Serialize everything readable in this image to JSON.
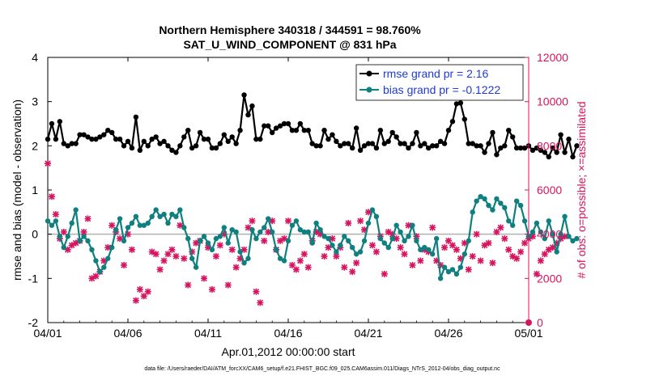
{
  "colors": {
    "rmse": "#000000",
    "bias": "#0f7f7f",
    "obs": "#d6145f",
    "zero_line": "#b0b0b0",
    "legend_rmse_text": "#1f3bd0",
    "legend_bias_text": "#1f3bd0"
  },
  "chart_data": {
    "type": "line",
    "title": "Northern Hemisphere 340318 / 344591 = 98.760%",
    "subtitle": "SAT_U_WIND_COMPONENT @ 831 hPa",
    "xlabel": "Apr.01,2012 00:00:00 start",
    "ylabel": "rmse and bias (model - observation)",
    "ylabel_right": "# of obs: o=possible; ×=assimilated",
    "footnote": "data file: /Users/raeder/DAI/ATM_forcXX/CAM6_setup/f.e21.FHIST_BGC.f09_025.CAM6assim.011/Diags_NTrS_2012-04/obs_diag_output.nc",
    "xlim": [
      0,
      30
    ],
    "ylim": [
      -2,
      4
    ],
    "ylim_right": [
      0,
      12000
    ],
    "x_ticks": [
      0,
      5,
      10,
      15,
      20,
      25,
      30
    ],
    "x_tick_labels": [
      "04/01",
      "04/06",
      "04/11",
      "04/16",
      "04/21",
      "04/26",
      "05/01"
    ],
    "y_ticks": [
      -2,
      -1,
      0,
      1,
      2,
      3,
      4
    ],
    "y_tick_labels": [
      "-2",
      "-1",
      "0",
      "1",
      "2",
      "3",
      "4"
    ],
    "y2_ticks": [
      0,
      2000,
      4000,
      6000,
      8000,
      10000,
      12000
    ],
    "y2_tick_labels": [
      "0",
      "2000",
      "4000",
      "6000",
      "8000",
      "10000",
      "12000"
    ],
    "x_step_days": 0.25,
    "legend": {
      "rmse_label": "rmse grand pr = 2.16",
      "bias_label": "bias grand pr = -0.1222",
      "position": "top-right"
    },
    "series": [
      {
        "name": "rmse",
        "values": [
          2.15,
          2.5,
          2.15,
          2.55,
          2.05,
          2.0,
          2.05,
          2.05,
          2.25,
          2.25,
          2.2,
          2.15,
          2.15,
          2.2,
          2.25,
          2.35,
          2.3,
          2.15,
          2.15,
          2.0,
          2.1,
          1.95,
          2.65,
          1.9,
          2.1,
          2.0,
          2.15,
          2.2,
          2.05,
          2.1,
          2.0,
          1.9,
          1.85,
          2.0,
          2.2,
          2.35,
          1.95,
          2.0,
          2.3,
          2.15,
          2.15,
          1.95,
          1.95,
          2.05,
          2.25,
          2.1,
          2.2,
          2.05,
          2.35,
          3.15,
          2.7,
          2.9,
          2.15,
          2.15,
          2.45,
          2.45,
          2.3,
          2.4,
          2.45,
          2.5,
          2.5,
          2.35,
          2.35,
          2.5,
          2.35,
          2.35,
          2.05,
          2.0,
          2.0,
          2.35,
          2.15,
          2.25,
          2.1,
          2.0,
          2.05,
          2.05,
          1.95,
          2.4,
          1.9,
          2.0,
          2.05,
          2.05,
          1.95,
          2.35,
          2.05,
          2.1,
          2.3,
          2.2,
          2.05,
          2.05,
          1.95,
          2.05,
          2.3,
          2.0,
          2.05,
          1.95,
          2.0,
          2.0,
          2.1,
          2.05,
          2.35,
          2.55,
          2.95,
          2.97,
          2.6,
          2.05,
          2.05,
          2.0,
          2.0,
          1.85,
          2.05,
          2.3,
          1.8,
          1.95,
          2.0,
          2.35,
          2.2,
          1.95,
          1.95,
          1.95,
          2.0,
          1.9,
          1.95,
          1.9,
          1.85,
          1.75,
          1.95,
          1.85,
          2.25,
          1.85,
          2.15,
          1.75,
          2.0
        ]
      },
      {
        "name": "bias",
        "values": [
          0.3,
          0.2,
          0.3,
          -0.05,
          -0.3,
          -0.05,
          0.25,
          0.55,
          -0.15,
          -0.05,
          -0.15,
          -0.35,
          -0.6,
          -0.85,
          -0.75,
          -0.55,
          -0.3,
          0.1,
          0.35,
          -0.15,
          0.15,
          0.25,
          0.4,
          0.2,
          0.2,
          0.25,
          0.4,
          0.55,
          0.4,
          0.45,
          0.25,
          0.45,
          0.4,
          0.55,
          0.15,
          -0.1,
          -0.55,
          -0.75,
          -0.15,
          -0.05,
          -0.2,
          -0.35,
          -0.1,
          -0.05,
          0.15,
          -0.2,
          0.1,
          0.05,
          -0.4,
          -0.65,
          -0.55,
          0.1,
          -0.1,
          0.05,
          0.15,
          0.35,
          0.05,
          -0.35,
          -0.55,
          -0.6,
          -0.15,
          0.2,
          0.3,
          0.1,
          0.05,
          0.05,
          -0.2,
          0.25,
          0.1,
          -0.05,
          -0.1,
          -0.25,
          -0.4,
          -0.25,
          -0.05,
          -0.15,
          -0.3,
          -0.45,
          -0.4,
          -0.15,
          0.25,
          0.55,
          0.4,
          -0.1,
          -0.2,
          -0.3,
          -0.1,
          0.2,
          0.05,
          -0.15,
          -0.05,
          0.2,
          -0.15,
          -0.35,
          -0.3,
          -0.35,
          -0.45,
          -0.1,
          -1.0,
          -0.75,
          -0.85,
          -0.8,
          -0.9,
          -0.75,
          -0.45,
          -0.15,
          0.5,
          0.75,
          0.85,
          0.8,
          0.65,
          0.55,
          0.8,
          0.7,
          0.6,
          0.3,
          0.2,
          0.75,
          0.65,
          0.3,
          -0.05,
          0.05,
          0.25,
          0.05,
          -0.1,
          0.3,
          0.0,
          -0.4,
          0.0,
          0.4,
          -0.05,
          -0.15,
          -0.1
        ]
      },
      {
        "name": "obs assimilated",
        "axis": "right",
        "values": [
          7200,
          5700,
          4900,
          3800,
          4100,
          3300,
          3500,
          3600,
          3700,
          4100,
          4700,
          2000,
          2100,
          2300,
          2800,
          3400,
          4400,
          4100,
          3800,
          2600,
          4000,
          3300,
          1000,
          1500,
          1200,
          1400,
          3200,
          3100,
          2400,
          2800,
          3100,
          3300,
          3000,
          4400,
          2900,
          1700,
          3200,
          3600,
          3700,
          2000,
          3400,
          1500,
          3000,
          3500,
          4000,
          1700,
          3300,
          2500,
          2900,
          3300,
          4300,
          4600,
          1400,
          900,
          3700,
          4100,
          4600,
          3300,
          3700,
          3800,
          4600,
          2600,
          2400,
          2800,
          3100,
          2500,
          3700,
          4100,
          4000,
          3000,
          3400,
          3800,
          3000,
          3400,
          2500,
          4500,
          2300,
          2700,
          4600,
          4200,
          5000,
          3500,
          3200,
          3900,
          2200,
          4100,
          4000,
          3800,
          3400,
          3100,
          4400,
          2600,
          3900,
          2800,
          3300,
          3200,
          4300,
          2800,
          2600,
          3400,
          3700,
          3500,
          3300,
          2900,
          3600,
          2400,
          3000,
          4000,
          2800,
          3500,
          3600,
          2700,
          4100,
          4300,
          3800,
          3300,
          3000,
          2900,
          3200,
          3600,
          3800,
          3900,
          2200,
          2800,
          3100,
          3300,
          3400,
          3600,
          3800,
          3900
        ]
      }
    ]
  }
}
